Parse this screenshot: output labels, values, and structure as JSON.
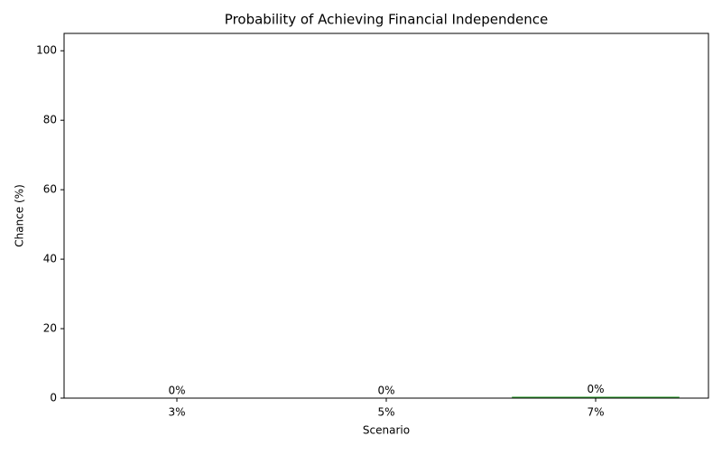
{
  "chart_data": {
    "type": "bar",
    "title": "Probability of Achieving Financial Independence",
    "x_label": "Scenario",
    "y_label": "Chance (%)",
    "categories": [
      "3%",
      "5%",
      "7%"
    ],
    "values": [
      0,
      0,
      0.4
    ],
    "value_labels": [
      "0%",
      "0%",
      "0%"
    ],
    "colors": [
      "#1f77b4",
      "#ff7f0e",
      "#2ca02c"
    ],
    "ylim": [
      0,
      105
    ],
    "yticks": [
      0,
      20,
      40,
      60,
      80,
      100
    ],
    "grid": false
  }
}
